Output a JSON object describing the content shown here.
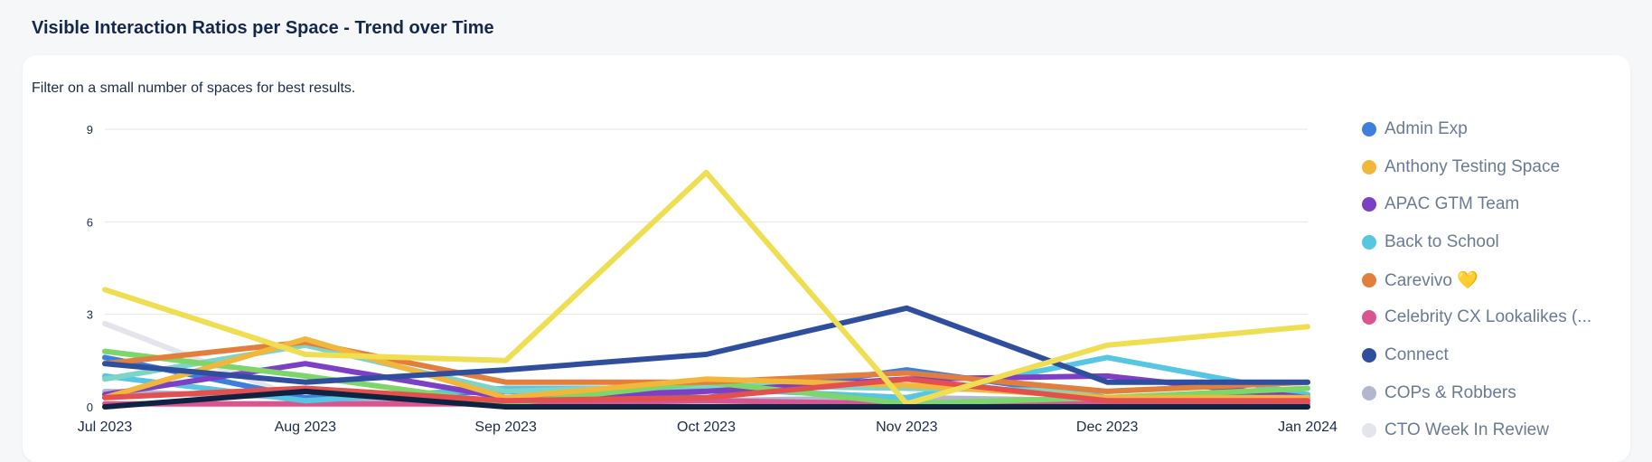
{
  "page": {
    "title": "Visible Interaction Ratios per Space - Trend over Time",
    "subtitle": "Filter on a small number of spaces for best results."
  },
  "chart_data": {
    "type": "line",
    "x": [
      "Jul 2023",
      "Aug 2023",
      "Sep 2023",
      "Oct 2023",
      "Nov 2023",
      "Dec 2023",
      "Jan 2024"
    ],
    "y_ticks": [
      0,
      3,
      6,
      9
    ],
    "ylim": [
      0,
      9
    ],
    "grid": true,
    "legend_position": "right",
    "legend": [
      {
        "name": "Admin Exp",
        "color": "#3f7fdc"
      },
      {
        "name": "Anthony Testing Space",
        "color": "#f2b63b"
      },
      {
        "name": "APAC GTM Team",
        "color": "#7d3fc4"
      },
      {
        "name": "Back to School",
        "color": "#56c6e3"
      },
      {
        "name": "Carevivo 💛",
        "color": "#e27f3c"
      },
      {
        "name": "Celebrity CX Lookalikes (...",
        "color": "#d9558f"
      },
      {
        "name": "Connect",
        "color": "#2f4f9e"
      },
      {
        "name": "COPs & Robbers",
        "color": "#b2b7cf"
      },
      {
        "name": "CTO Week In Review",
        "color": "#e4e4ec"
      }
    ],
    "series": [
      {
        "name": "CTO Week In Review",
        "color": "#e4e4ec",
        "values": [
          2.7,
          0.2,
          0.1,
          0.1,
          0.2,
          0.1,
          0.2
        ]
      },
      {
        "name": "COPs & Robbers",
        "color": "#b2b7cf",
        "values": [
          0.5,
          0.3,
          0.2,
          0.2,
          0.3,
          0.2,
          0.3
        ]
      },
      {
        "name": "Celebrity CX Lookalikes (...",
        "color": "#d9558f",
        "values": [
          0.1,
          0.1,
          0.1,
          0.2,
          0.1,
          0.1,
          0.1
        ]
      },
      {
        "name": "Admin Exp",
        "color": "#3f7fdc",
        "values": [
          1.6,
          0.3,
          0.5,
          0.3,
          1.2,
          0.3,
          0.4
        ]
      },
      {
        "name": "Back to School",
        "color": "#56c6e3",
        "values": [
          1.0,
          0.2,
          0.6,
          0.6,
          0.3,
          1.6,
          0.4
        ]
      },
      {
        "name": null,
        "color": "#7ed4c9",
        "values": [
          0.9,
          2.0,
          0.5,
          0.7,
          0.6,
          0.5,
          0.8
        ]
      },
      {
        "name": "APAC GTM Team",
        "color": "#7d3fc4",
        "values": [
          0.4,
          1.4,
          0.3,
          0.5,
          0.9,
          1.0,
          0.3
        ]
      },
      {
        "name": null,
        "color": "#7cd66a",
        "values": [
          1.8,
          1.0,
          0.1,
          0.8,
          0.1,
          0.3,
          0.6
        ]
      },
      {
        "name": "Carevivo 💛",
        "color": "#e27f3c",
        "values": [
          1.4,
          2.1,
          0.8,
          0.8,
          1.1,
          0.5,
          0.8
        ]
      },
      {
        "name": "Anthony Testing Space",
        "color": "#f2b63b",
        "values": [
          0.3,
          2.2,
          0.3,
          0.9,
          0.7,
          0.3,
          0.3
        ]
      },
      {
        "name": null,
        "color": "#e2504f",
        "values": [
          0.3,
          0.6,
          0.2,
          0.3,
          0.9,
          0.2,
          0.2
        ]
      },
      {
        "name": "Connect",
        "color": "#2f4f9e",
        "values": [
          1.4,
          0.8,
          1.2,
          1.7,
          3.2,
          0.8,
          0.8
        ]
      },
      {
        "name": null,
        "color": "#f0de52",
        "values": [
          3.8,
          1.7,
          1.5,
          7.6,
          0.1,
          2.0,
          2.6
        ]
      },
      {
        "name": null,
        "color": "#0f2242",
        "values": [
          0.0,
          0.5,
          0.0,
          0.0,
          0.0,
          0.0,
          0.0
        ]
      }
    ]
  }
}
